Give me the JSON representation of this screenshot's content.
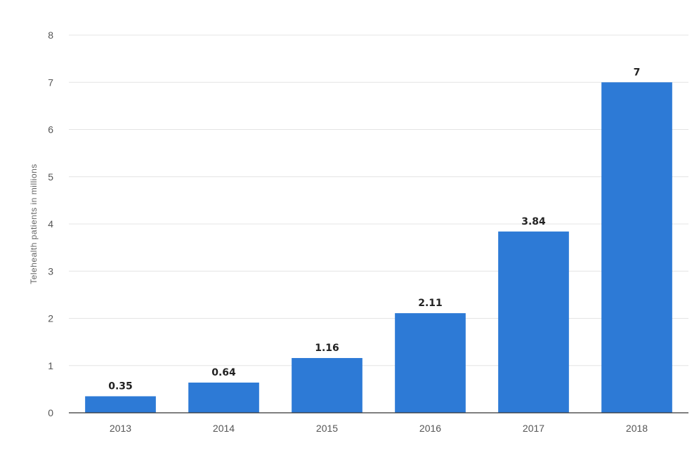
{
  "chart_data": {
    "type": "bar",
    "categories": [
      "2013",
      "2014",
      "2015",
      "2016",
      "2017",
      "2018"
    ],
    "values": [
      0.35,
      0.64,
      1.16,
      2.11,
      3.84,
      7
    ],
    "value_labels": [
      "0.35",
      "0.64",
      "1.16",
      "2.11",
      "3.84",
      "7"
    ],
    "title": "",
    "xlabel": "",
    "ylabel": "Telehealth patients in millions",
    "ylim": [
      0,
      8
    ],
    "yticks": [
      0,
      1,
      2,
      3,
      4,
      5,
      6,
      7,
      8
    ],
    "grid": true,
    "legend": "none",
    "bar_color": "#2d7ad6"
  }
}
